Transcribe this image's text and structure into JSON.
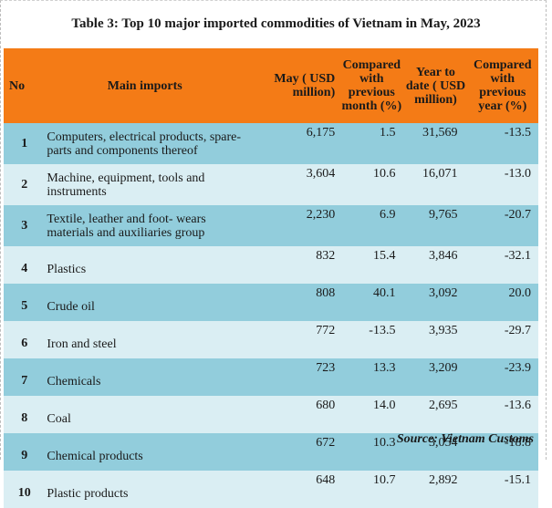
{
  "title": "Table 3: Top 10 major imported commodities of Vietnam in May, 2023",
  "colors": {
    "header_bg": "#f47b16",
    "row_odd_bg": "#92cddc",
    "row_even_bg": "#daeef3"
  },
  "headers": {
    "no": "No",
    "name": "Main imports",
    "may": "May ( USD million)",
    "mom": "Compared with previous month (%)",
    "ytd": "Year to date ( USD million)",
    "yoy": "Compared with previous year (%)"
  },
  "rows": [
    {
      "no": "1",
      "name": "Computers, electrical products, spare-parts and  components thereof",
      "may": "6,175",
      "mom": "1.5",
      "ytd": "31,569",
      "yoy": "-13.5"
    },
    {
      "no": "2",
      "name": "Machine, equipment, tools and instruments",
      "may": "3,604",
      "mom": "10.6",
      "ytd": "16,071",
      "yoy": "-13.0"
    },
    {
      "no": "3",
      "name": "Textile, leather and foot- wears materials and auxiliaries group",
      "may": "2,230",
      "mom": "6.9",
      "ytd": "9,765",
      "yoy": "-20.7"
    },
    {
      "no": "4",
      "name": "Plastics",
      "may": "832",
      "mom": "15.4",
      "ytd": "3,846",
      "yoy": "-32.1"
    },
    {
      "no": "5",
      "name": "Crude oil",
      "may": "808",
      "mom": "40.1",
      "ytd": "3,092",
      "yoy": "20.0"
    },
    {
      "no": "6",
      "name": "Iron and steel",
      "may": "772",
      "mom": "-13.5",
      "ytd": "3,935",
      "yoy": "-29.7"
    },
    {
      "no": "7",
      "name": "Chemicals",
      "may": "723",
      "mom": "13.3",
      "ytd": "3,209",
      "yoy": "-23.9"
    },
    {
      "no": "8",
      "name": "Coal",
      "may": "680",
      "mom": "14.0",
      "ytd": "2,695",
      "yoy": "-13.6"
    },
    {
      "no": "9",
      "name": "Chemical products",
      "may": "672",
      "mom": "10.3",
      "ytd": "3,054",
      "yoy": "-18.8"
    },
    {
      "no": "10",
      "name": "Plastic products",
      "may": "648",
      "mom": "10.7",
      "ytd": "2,892",
      "yoy": "-15.1"
    }
  ],
  "source": "Source: Vietnam Customs"
}
